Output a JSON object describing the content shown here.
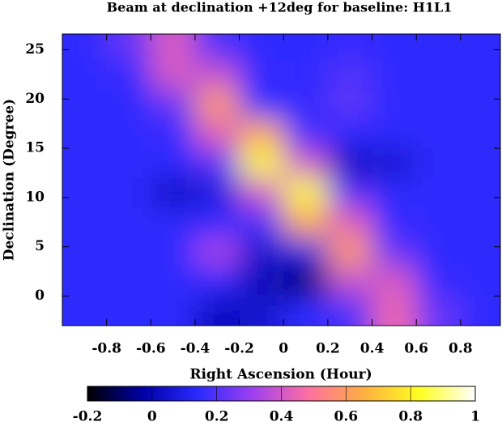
{
  "chart_data": {
    "type": "heatmap",
    "title": "Beam at declination +12deg for baseline: H1L1",
    "x_label": "Right Ascension (Hour)",
    "y_label": "Declination (Degree)",
    "x": [
      -0.9,
      -0.7,
      -0.5,
      -0.3,
      -0.1,
      0.1,
      0.3,
      0.5,
      0.7,
      0.9
    ],
    "y": [
      25.5,
      22.5,
      19.5,
      16.5,
      13.5,
      10.5,
      7.5,
      4.5,
      1.5,
      -1.5
    ],
    "z": [
      [
        0.15,
        0.23,
        0.41,
        0.19,
        0.15,
        0.15,
        0.16,
        0.15,
        0.15,
        0.15
      ],
      [
        0.15,
        0.16,
        0.41,
        0.38,
        0.16,
        0.15,
        0.2,
        0.15,
        0.15,
        0.15
      ],
      [
        0.15,
        0.15,
        0.23,
        0.6,
        0.15,
        0.16,
        0.22,
        0.15,
        0.15,
        0.15
      ],
      [
        0.15,
        0.15,
        0.16,
        0.43,
        0.64,
        0.18,
        0.15,
        0.15,
        0.15,
        0.15
      ],
      [
        0.15,
        0.15,
        0.15,
        0.21,
        0.82,
        0.4,
        0.02,
        0.05,
        0.15,
        0.15
      ],
      [
        0.15,
        0.15,
        0.02,
        0.08,
        0.4,
        0.82,
        0.21,
        0.15,
        0.15,
        0.15
      ],
      [
        0.15,
        0.15,
        0.15,
        0.15,
        0.18,
        0.64,
        0.43,
        0.16,
        0.15,
        0.15
      ],
      [
        0.15,
        0.15,
        0.15,
        0.33,
        0.05,
        0.1,
        0.6,
        0.23,
        0.15,
        0.15
      ],
      [
        0.15,
        0.15,
        0.15,
        0.15,
        0.0,
        -0.1,
        0.38,
        0.41,
        0.16,
        0.15
      ],
      [
        0.15,
        0.15,
        0.15,
        0.02,
        0.05,
        0.15,
        0.19,
        0.45,
        0.23,
        0.15
      ]
    ],
    "xlim": [
      -1,
      0.98
    ],
    "ylim": [
      -3,
      26.6
    ],
    "xticks": [
      -0.8,
      -0.6,
      -0.4,
      -0.2,
      0,
      0.2,
      0.4,
      0.6,
      0.8
    ],
    "yticks": [
      0,
      5,
      10,
      15,
      20,
      25
    ],
    "zlim": [
      -0.2,
      1
    ],
    "zticks": [
      -0.2,
      0,
      0.2,
      0.4,
      0.6,
      0.8,
      1
    ],
    "colormap": [
      "#000000",
      "#0000a8",
      "#2a2aff",
      "#a040f0",
      "#ff70a0",
      "#ffb040",
      "#ffff20",
      "#ffffff"
    ]
  }
}
